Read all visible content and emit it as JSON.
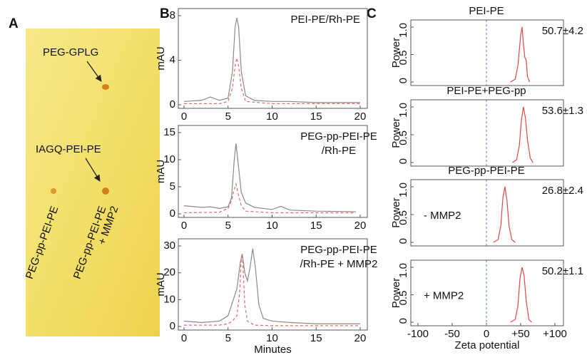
{
  "panel_labels": [
    "A",
    "B",
    "C"
  ],
  "panel_a": {
    "annotations": [
      "PEG-GPLG",
      "IAGQ-PEI-PE"
    ],
    "lanes": [
      [
        "PEG-pp-PEI-PE"
      ],
      [
        "PEG-pp-PEI-PE",
        "+ MMP2"
      ]
    ]
  },
  "chart_data": [
    {
      "type": "line",
      "title": [
        "PEI-PE/Rh-PE"
      ],
      "ylabel": "mAU",
      "xlim": [
        0,
        20
      ],
      "xticks": [
        0,
        5,
        10,
        15,
        20
      ],
      "ylim": [
        0,
        8
      ],
      "yticks": [
        0,
        4,
        8
      ],
      "series": [
        {
          "color": "#8a8a8a",
          "dash": false,
          "x": [
            0,
            2,
            3,
            4,
            5,
            5.5,
            5.8,
            6,
            6.2,
            6.5,
            7,
            8,
            10,
            12,
            15,
            20
          ],
          "values": [
            0.3,
            0.4,
            0.7,
            0.4,
            0.6,
            3,
            7,
            7.8,
            7,
            3,
            0.8,
            0.4,
            0.3,
            0.3,
            0.2,
            0.2
          ]
        },
        {
          "color": "#e06a6a",
          "dash": true,
          "x": [
            0,
            4,
            5,
            5.5,
            5.8,
            6,
            6.2,
            6.5,
            7,
            10,
            20
          ],
          "values": [
            0.1,
            0.1,
            0.3,
            1.5,
            3.5,
            4.2,
            3.5,
            1.5,
            0.3,
            0.1,
            0.1
          ]
        }
      ]
    },
    {
      "type": "line",
      "title": [
        "PEG-pp-PEI-PE",
        "/Rh-PE"
      ],
      "ylabel": "mAU",
      "xlim": [
        0,
        20
      ],
      "xticks": [
        0,
        5,
        10,
        15,
        20
      ],
      "ylim": [
        0,
        15
      ],
      "yticks": [
        0,
        5,
        10,
        15
      ],
      "series": [
        {
          "color": "#8a8a8a",
          "dash": false,
          "x": [
            0,
            2,
            3,
            4,
            5,
            5.4,
            5.7,
            5.9,
            6.1,
            6.5,
            7,
            8,
            10,
            11,
            12,
            15,
            19.5
          ],
          "values": [
            1.5,
            1.2,
            1.3,
            1.0,
            1.3,
            3,
            10,
            13,
            10,
            4,
            2,
            1.2,
            0.8,
            1.4,
            0.7,
            0.5,
            0.4
          ]
        },
        {
          "color": "#e06a6a",
          "dash": true,
          "x": [
            0,
            4,
            5,
            5.4,
            5.7,
            5.9,
            6.1,
            6.5,
            7,
            10,
            19.5
          ],
          "values": [
            0.2,
            0.3,
            1,
            2.5,
            4.5,
            5.5,
            4,
            1.5,
            0.5,
            0.2,
            0.2
          ]
        }
      ]
    },
    {
      "type": "line",
      "title": [
        "PEG-pp-PEI-PE",
        "/Rh-PE + MMP2"
      ],
      "ylabel": "mAU",
      "xlabel": "Minutes",
      "xlim": [
        0,
        20
      ],
      "xticks": [
        0,
        5,
        10,
        15,
        20
      ],
      "ylim": [
        0,
        30
      ],
      "yticks": [
        0,
        10,
        20,
        30
      ],
      "series": [
        {
          "color": "#8a8a8a",
          "dash": false,
          "x": [
            0,
            2,
            4,
            5,
            5.5,
            6,
            6.4,
            6.6,
            6.9,
            7.2,
            7.5,
            7.8,
            8.1,
            8.5,
            9,
            10,
            12,
            15,
            20
          ],
          "values": [
            2,
            1.5,
            2,
            4,
            9,
            14,
            24,
            27,
            20,
            17,
            22,
            29,
            22,
            8,
            3,
            2,
            1.5,
            1,
            1
          ]
        },
        {
          "color": "#e06a6a",
          "dash": true,
          "x": [
            0,
            4,
            5,
            5.5,
            6,
            6.3,
            6.5,
            6.6,
            6.7,
            6.9,
            7.2,
            8,
            10,
            20
          ],
          "values": [
            0.5,
            0.5,
            1,
            2,
            4,
            12,
            25,
            27,
            22,
            8,
            2,
            0.5,
            0.3,
            0.3
          ]
        }
      ]
    },
    {
      "type": "line",
      "title": [
        "PEI-PE"
      ],
      "ylabel": "Power",
      "value_text": "50.7±4.2",
      "ref_x": 0,
      "xlim": [
        -100,
        100
      ],
      "ylim": [
        0,
        1
      ],
      "yticks": [
        0,
        0.5,
        {
          "value": 1,
          "label": "1.0"
        }
      ],
      "series": [
        {
          "color": "#e04848",
          "dash": false,
          "x": [
            35,
            42,
            46,
            50,
            52,
            54,
            56,
            58,
            60,
            63
          ],
          "values": [
            0,
            0.05,
            0.3,
            0.85,
            1.0,
            0.7,
            0.45,
            0.4,
            0.1,
            0
          ]
        }
      ]
    },
    {
      "type": "line",
      "title": [
        "PEI-PE+PEG-pp"
      ],
      "ylabel": "Power",
      "value_text": "53.6±1.3",
      "ref_x": 0,
      "xlim": [
        -100,
        100
      ],
      "ylim": [
        0,
        1
      ],
      "yticks": [
        0,
        0.5,
        {
          "value": 1,
          "label": "1.0"
        }
      ],
      "series": [
        {
          "color": "#e04848",
          "dash": false,
          "x": [
            38,
            44,
            48,
            51,
            54,
            57,
            60,
            64,
            68
          ],
          "values": [
            0,
            0.05,
            0.3,
            0.75,
            1.0,
            0.8,
            0.4,
            0.08,
            0
          ]
        }
      ]
    },
    {
      "type": "line",
      "title": [
        "PEG-pp-PEI-PE"
      ],
      "ylabel": "Power",
      "inner_label": "- MMP2",
      "value_text": "26.8±2.4",
      "ref_x": 0,
      "xlim": [
        -100,
        100
      ],
      "ylim": [
        0,
        1
      ],
      "yticks": [
        0,
        0.5,
        {
          "value": 1,
          "label": "1.0"
        }
      ],
      "series": [
        {
          "color": "#e04848",
          "dash": false,
          "x": [
            10,
            17,
            21,
            24,
            27,
            30,
            33,
            37,
            42
          ],
          "values": [
            0,
            0.05,
            0.3,
            0.8,
            1.0,
            0.75,
            0.3,
            0.05,
            0
          ]
        }
      ]
    },
    {
      "type": "line",
      "ylabel": "Power",
      "xlabel": "Zeta potential",
      "inner_label": "+ MMP2",
      "value_text": "50.2±1.1",
      "ref_x": 0,
      "xlim": [
        -100,
        100
      ],
      "xticks": [
        -100,
        -50,
        0,
        {
          "value": 50,
          "label": "+50"
        },
        {
          "value": 100,
          "label": "+100"
        }
      ],
      "ylim": [
        0,
        1
      ],
      "yticks": [
        0,
        0.5,
        {
          "value": 1,
          "label": "1.0"
        }
      ],
      "series": [
        {
          "color": "#e04848",
          "dash": false,
          "x": [
            35,
            42,
            46,
            49,
            52,
            55,
            58,
            62,
            66
          ],
          "values": [
            0,
            0.05,
            0.3,
            0.8,
            1.0,
            0.85,
            0.4,
            0.05,
            0
          ]
        }
      ]
    }
  ]
}
